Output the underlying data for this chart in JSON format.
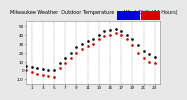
{
  "title_left": "Milwaukee Weather Outdoor Temperature vs Wind Chill (24 Hours)",
  "bg_color": "#e8e8e8",
  "plot_bg": "#ffffff",
  "grid_color": "#aaaaaa",
  "ylim": [
    -15,
    55
  ],
  "ytick_vals": [
    -10,
    0,
    10,
    20,
    30,
    40,
    50
  ],
  "xlim": [
    0,
    24
  ],
  "xtick_vals": [
    1,
    3,
    5,
    7,
    9,
    11,
    13,
    15,
    17,
    19,
    21,
    23
  ],
  "hours": [
    0,
    1,
    2,
    3,
    4,
    5,
    6,
    7,
    8,
    9,
    10,
    11,
    12,
    13,
    14,
    15,
    16,
    17,
    18,
    19,
    20,
    21,
    22,
    23
  ],
  "temp": [
    5,
    4,
    3,
    2,
    1,
    0,
    8,
    14,
    20,
    26,
    30,
    33,
    35,
    40,
    44,
    45,
    46,
    44,
    40,
    35,
    28,
    22,
    18,
    15
  ],
  "windchill": [
    0,
    -2,
    -4,
    -5,
    -6,
    -7,
    3,
    8,
    14,
    20,
    24,
    27,
    30,
    35,
    38,
    40,
    42,
    40,
    35,
    28,
    20,
    14,
    10,
    8
  ],
  "temp_color": "#000000",
  "wind_color": "#cc0000",
  "legend_temp_color": "#0000dd",
  "legend_wind_color": "#dd0000",
  "vline_color": "#666666",
  "vline_style": "--",
  "marker_size": 1.8,
  "tick_fontsize": 3.0,
  "title_fontsize": 3.5
}
